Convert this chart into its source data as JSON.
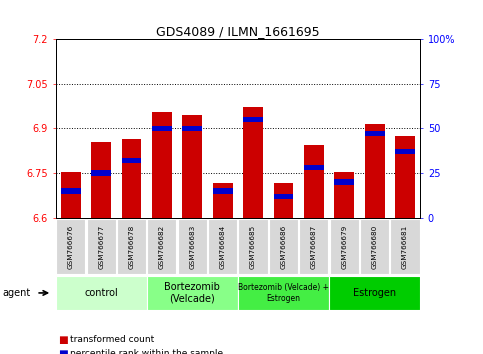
{
  "title": "GDS4089 / ILMN_1661695",
  "samples": [
    "GSM766676",
    "GSM766677",
    "GSM766678",
    "GSM766682",
    "GSM766683",
    "GSM766684",
    "GSM766685",
    "GSM766686",
    "GSM766687",
    "GSM766679",
    "GSM766680",
    "GSM766681"
  ],
  "bar_values": [
    6.755,
    6.855,
    6.865,
    6.955,
    6.945,
    6.718,
    6.97,
    6.718,
    6.845,
    6.755,
    6.915,
    6.875
  ],
  "percentile_values": [
    15,
    25,
    32,
    50,
    50,
    15,
    55,
    12,
    28,
    20,
    47,
    37
  ],
  "ylim_left": [
    6.6,
    7.2
  ],
  "ylim_right": [
    0,
    100
  ],
  "yticks_left": [
    6.6,
    6.75,
    6.9,
    7.05,
    7.2
  ],
  "yticks_left_labels": [
    "6.6",
    "6.75",
    "6.9",
    "7.05",
    "7.2"
  ],
  "yticks_right": [
    0,
    25,
    50,
    75,
    100
  ],
  "yticks_right_labels": [
    "0",
    "25",
    "50",
    "75",
    "100%"
  ],
  "bar_color": "#cc0000",
  "blue_color": "#0000cc",
  "groups": [
    {
      "label": "control",
      "start": 0,
      "end": 3,
      "color": "#ccffcc",
      "fontsize": 7
    },
    {
      "label": "Bortezomib\n(Velcade)",
      "start": 3,
      "end": 6,
      "color": "#88ff88",
      "fontsize": 7
    },
    {
      "label": "Bortezomib (Velcade) +\nEstrogen",
      "start": 6,
      "end": 9,
      "color": "#44ee44",
      "fontsize": 5.5
    },
    {
      "label": "Estrogen",
      "start": 9,
      "end": 12,
      "color": "#00cc00",
      "fontsize": 7
    }
  ],
  "legend_items": [
    {
      "color": "#cc0000",
      "label": "transformed count"
    },
    {
      "color": "#0000cc",
      "label": "percentile rank within the sample"
    }
  ],
  "agent_label": "agent",
  "bar_bottom": 6.6,
  "blue_bar_height": 0.018
}
